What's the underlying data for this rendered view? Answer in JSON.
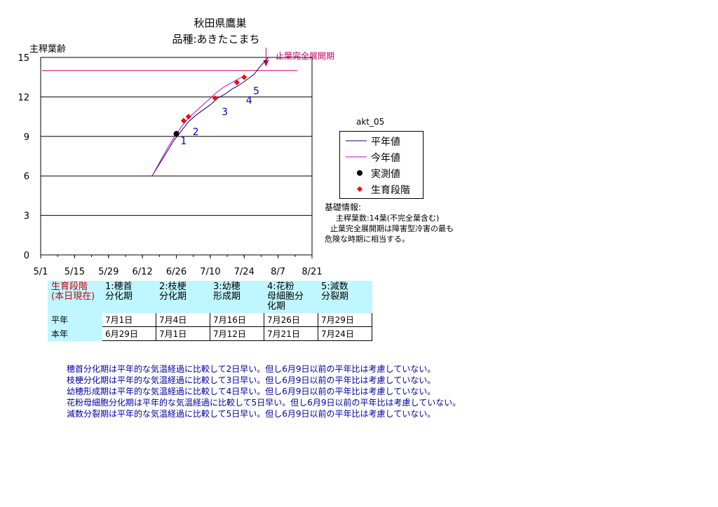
{
  "chart_data": {
    "type": "line",
    "title": "秋田県鷹巣",
    "subtitle": "品種:あきたこまち",
    "ylabel": "主稈葉齢",
    "ylim": [
      0,
      15
    ],
    "yticks": [
      "0",
      "3",
      "6",
      "9",
      "12",
      "15"
    ],
    "xlim": [
      "5/1",
      "8/21"
    ],
    "xticks": [
      "5/1",
      "5/15",
      "5/29",
      "6/12",
      "6/26",
      "7/10",
      "7/24",
      "8/7",
      "8/21"
    ],
    "grid": "horizontal",
    "reference_line": {
      "label": "止葉完全展開期",
      "value": 14,
      "color": "#cc0066"
    },
    "code": "akt_05",
    "series": [
      {
        "name": "平年値",
        "color": "#000080",
        "x": [
          "6/16",
          "6/19",
          "6/22",
          "6/25",
          "6/28",
          "7/1",
          "7/4",
          "7/7",
          "7/10",
          "7/13",
          "7/16",
          "7/19",
          "7/22",
          "7/25",
          "7/28",
          "7/31",
          "8/3"
        ],
        "y": [
          6.0,
          6.9,
          7.8,
          8.7,
          9.4,
          10.1,
          10.6,
          11.0,
          11.4,
          11.9,
          12.2,
          12.6,
          12.9,
          13.3,
          13.7,
          14.4,
          15.0
        ]
      },
      {
        "name": "今年値",
        "color": "#cc00cc",
        "x": [
          "6/16",
          "6/19",
          "6/22",
          "6/25",
          "6/28",
          "7/1",
          "7/4",
          "7/7",
          "7/10",
          "7/13",
          "7/16",
          "7/19",
          "7/22",
          "7/24"
        ],
        "y": [
          6.0,
          7.0,
          8.0,
          8.9,
          9.7,
          10.4,
          10.9,
          11.4,
          11.9,
          12.4,
          12.8,
          13.1,
          13.4,
          13.6
        ]
      },
      {
        "name": "実測値",
        "marker": "circle",
        "color": "#000000",
        "x": [
          "6/26"
        ],
        "y": [
          9.2
        ]
      },
      {
        "name": "生育段階",
        "marker": "diamond",
        "color": "#ff0000",
        "x": [
          "6/29",
          "7/1",
          "7/12",
          "7/21",
          "7/24"
        ],
        "y": [
          10.2,
          10.5,
          11.9,
          13.1,
          13.5
        ]
      }
    ],
    "stage_labels": [
      {
        "text": "1",
        "x": "6/29",
        "y": 8.4
      },
      {
        "text": "2",
        "x": "7/4",
        "y": 9.1
      },
      {
        "text": "3",
        "x": "7/16",
        "y": 10.6
      },
      {
        "text": "4",
        "x": "7/26",
        "y": 11.5
      },
      {
        "text": "5",
        "x": "7/29",
        "y": 12.2
      }
    ]
  },
  "legend": {
    "items": [
      {
        "label": "平年値"
      },
      {
        "label": "今年値"
      },
      {
        "label": "実測値"
      },
      {
        "label": "生育段階"
      }
    ]
  },
  "info": {
    "title": "基礎情報:",
    "line1": "主稈葉数:14葉(不完全葉含む)",
    "line2": "止葉完全展開期は障害型冷害の最も",
    "line3": "危険な時期に相当する。"
  },
  "table": {
    "corner": "生育段階\n(本日現在)",
    "stages": [
      "1:穂首\n分化期",
      "2:枝梗\n分化期",
      "3:幼穂\n形成期",
      "4:花粉\n母細胞分\n化期",
      "5:減数\n分裂期"
    ],
    "rows": [
      {
        "label": "平年",
        "values": [
          "7月1日",
          "7月4日",
          "7月16日",
          "7月26日",
          "7月29日"
        ]
      },
      {
        "label": "本年",
        "values": [
          "6月29日",
          "7月1日",
          "7月12日",
          "7月21日",
          "7月24日"
        ]
      }
    ]
  },
  "notes": [
    "穂首分化期は平年的な気温経過に比較して2日早い。但し6月9日以前の平年比は考慮していない。",
    "枝梗分化期は平年的な気温経過に比較して3日早い。但し6月9日以前の平年比は考慮していない。",
    "幼穂形成期は平年的な気温経過に比較して4日早い。但し6月9日以前の平年比は考慮していない。",
    "花粉母細胞分化期は平年的な気温経過に比較して5日早い。但し6月9日以前の平年比は考慮していない。",
    "減数分裂期は平年的な気温経過に比較して5日早い。但し6月9日以前の平年比は考慮していない。"
  ]
}
